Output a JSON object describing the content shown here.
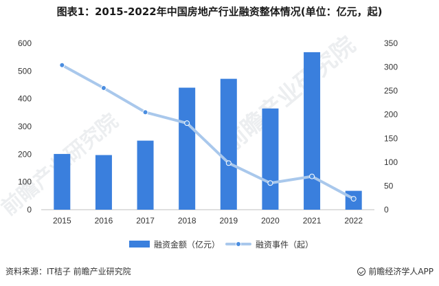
{
  "title": "图表1：2015-2022年中国房地产行业融资整体情况(单位：亿元，起)",
  "footer": {
    "source": "资料来源：IT桔子 前瞻产业研究院",
    "brand": "前瞻经济学人APP"
  },
  "watermark": {
    "text1": "前瞻产业研究院",
    "text2": "前瞻产业研究院"
  },
  "chart_data": {
    "type": "bar",
    "categories": [
      "2015",
      "2016",
      "2017",
      "2018",
      "2019",
      "2020",
      "2021",
      "2022"
    ],
    "series": [
      {
        "name": "融资金额（亿元）",
        "type": "bar",
        "axis": "left",
        "values": [
          201,
          197,
          249,
          440,
          472,
          365,
          568,
          68
        ]
      },
      {
        "name": "融资事件（起）",
        "type": "line",
        "axis": "right",
        "values": [
          304,
          256,
          205,
          182,
          98,
          56,
          70,
          23
        ]
      }
    ],
    "ylim_left": [
      0,
      600
    ],
    "yticks_left": [
      0,
      100,
      200,
      300,
      400,
      500,
      600
    ],
    "ylim_right": [
      0,
      350
    ],
    "yticks_right": [
      0,
      50,
      100,
      150,
      200,
      250,
      300,
      350
    ],
    "legend_position": "bottom",
    "grid": false,
    "colors": {
      "bar": "#3a7fdd",
      "line": "#a9c8ec",
      "marker": "#4a8de0",
      "axis": "#bfbfbf",
      "tick_text": "#333333"
    }
  }
}
